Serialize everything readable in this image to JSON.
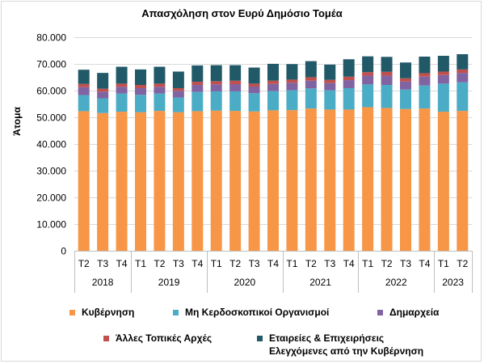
{
  "chart_data": {
    "type": "bar",
    "stacked": true,
    "title": "Απασχόληση στον Ευρύ Δημόσιο Τομέα",
    "ylabel": "Άτομα",
    "xlabel": "",
    "ylim": [
      0,
      80000
    ],
    "yticks": [
      "0",
      "10.000",
      "20.000",
      "30.000",
      "40.000",
      "50.000",
      "60.000",
      "70.000",
      "80.000"
    ],
    "ytick_values": [
      0,
      10000,
      20000,
      30000,
      40000,
      50000,
      60000,
      70000,
      80000
    ],
    "grid": true,
    "legend_position": "bottom",
    "categories": [
      "T2",
      "T3",
      "T4",
      "T1",
      "T2",
      "T3",
      "T4",
      "T1",
      "T2",
      "T3",
      "T4",
      "T1",
      "T2",
      "T3",
      "T4",
      "T1",
      "T2",
      "T3",
      "T4",
      "T1",
      "T2"
    ],
    "years": [
      {
        "label": "2018",
        "count": 3
      },
      {
        "label": "2019",
        "count": 4
      },
      {
        "label": "2020",
        "count": 4
      },
      {
        "label": "2021",
        "count": 4
      },
      {
        "label": "2022",
        "count": 4
      },
      {
        "label": "2023",
        "count": 2
      }
    ],
    "series": [
      {
        "name": "Κυβέρνηση",
        "color": "#f79646",
        "values": [
          52200,
          51500,
          52000,
          51800,
          52300,
          51800,
          52200,
          52400,
          52300,
          52100,
          52500,
          52600,
          53200,
          52800,
          52800,
          53700,
          53400,
          53000,
          53200,
          52000,
          52300
        ]
      },
      {
        "name": "Μη Κερδοσκοπικοί Οργανισμοί",
        "color": "#4bacc6",
        "values": [
          6000,
          5500,
          6800,
          6500,
          6500,
          5500,
          7200,
          7200,
          7300,
          6800,
          7200,
          7400,
          7500,
          7200,
          8000,
          8500,
          8600,
          7300,
          8600,
          10500,
          10700
        ]
      },
      {
        "name": "Δημαρχεία",
        "color": "#8064a2",
        "values": [
          3000,
          2500,
          2500,
          2500,
          2500,
          2500,
          2600,
          2600,
          2700,
          2500,
          2700,
          2800,
          2900,
          2700,
          3000,
          3300,
          3500,
          3000,
          3300,
          3200,
          3500
        ]
      },
      {
        "name": "Άλλες Τοπικές Αρχές",
        "color": "#c0504d",
        "values": [
          1200,
          1100,
          1200,
          1200,
          1200,
          1000,
          1200,
          1200,
          1300,
          1100,
          1200,
          1200,
          1300,
          1200,
          1300,
          1300,
          1400,
          1200,
          1300,
          1300,
          1300
        ]
      },
      {
        "name": "Εταιρείες & Επιχειρήσεις Ελεγχόμενες από την Κυβέρνηση",
        "color": "#215968",
        "values": [
          5300,
          5900,
          6300,
          5800,
          6300,
          6200,
          6100,
          6000,
          5800,
          6000,
          6300,
          5800,
          6000,
          5700,
          6500,
          5900,
          5600,
          5900,
          6200,
          5900,
          5700
        ]
      }
    ]
  },
  "legend": {
    "items": [
      {
        "label": "Κυβέρνηση",
        "color": "#f79646"
      },
      {
        "label": "Μη Κερδοσκοπικοί Οργανισμοί",
        "color": "#4bacc6"
      },
      {
        "label": "Δημαρχεία",
        "color": "#8064a2"
      },
      {
        "label": "Άλλες Τοπικές Αρχές",
        "color": "#c0504d"
      },
      {
        "label": "Εταιρείες & Επιχειρήσεις",
        "label2": "Ελεγχόμενες από την Κυβέρνηση",
        "color": "#215968"
      }
    ]
  }
}
